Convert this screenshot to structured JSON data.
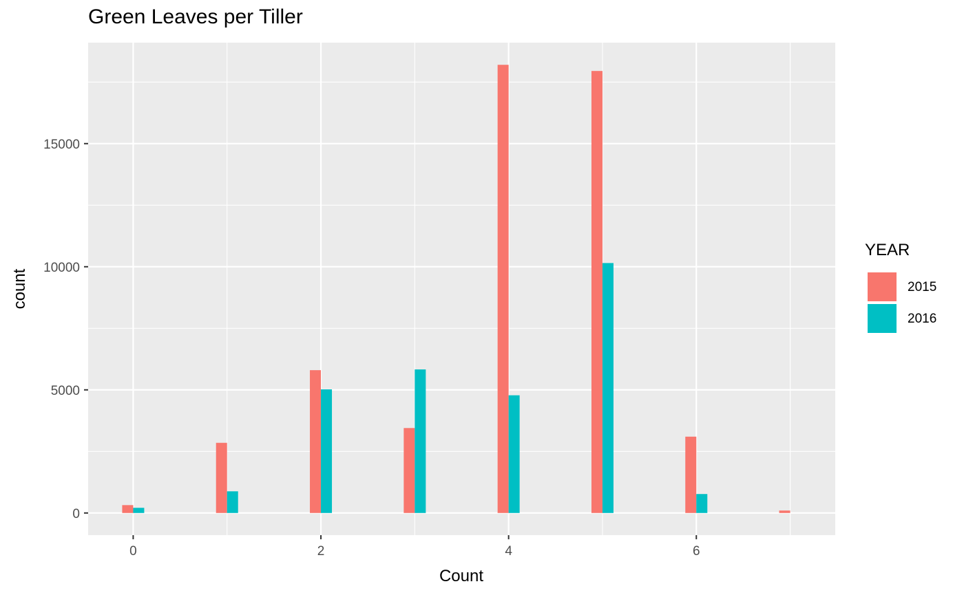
{
  "chart_data": {
    "type": "bar",
    "title": "Green Leaves per Tiller",
    "xlabel": "Count",
    "ylabel": "count",
    "x": [
      0,
      1,
      2,
      3,
      4,
      5,
      6,
      7
    ],
    "x_ticks": [
      "0",
      "2",
      "4",
      "6"
    ],
    "x_tick_values": [
      0,
      2,
      4,
      6
    ],
    "y_ticks": [
      "0",
      "5000",
      "10000",
      "15000"
    ],
    "y_tick_values": [
      0,
      5000,
      10000,
      15000
    ],
    "xlim": [
      -0.48,
      7.48
    ],
    "ylim": [
      -900,
      19100
    ],
    "grid": true,
    "legend": {
      "title": "YEAR",
      "position": "right"
    },
    "series": [
      {
        "name": "2015",
        "color": "#F8766D",
        "values": [
          320,
          2850,
          5800,
          3450,
          18200,
          17950,
          3100,
          100
        ]
      },
      {
        "name": "2016",
        "color": "#00BFC4",
        "values": [
          210,
          880,
          5020,
          5830,
          4780,
          10150,
          770,
          0
        ]
      }
    ],
    "panel_background": "#EBEBEB",
    "grid_color": "#FFFFFF"
  }
}
